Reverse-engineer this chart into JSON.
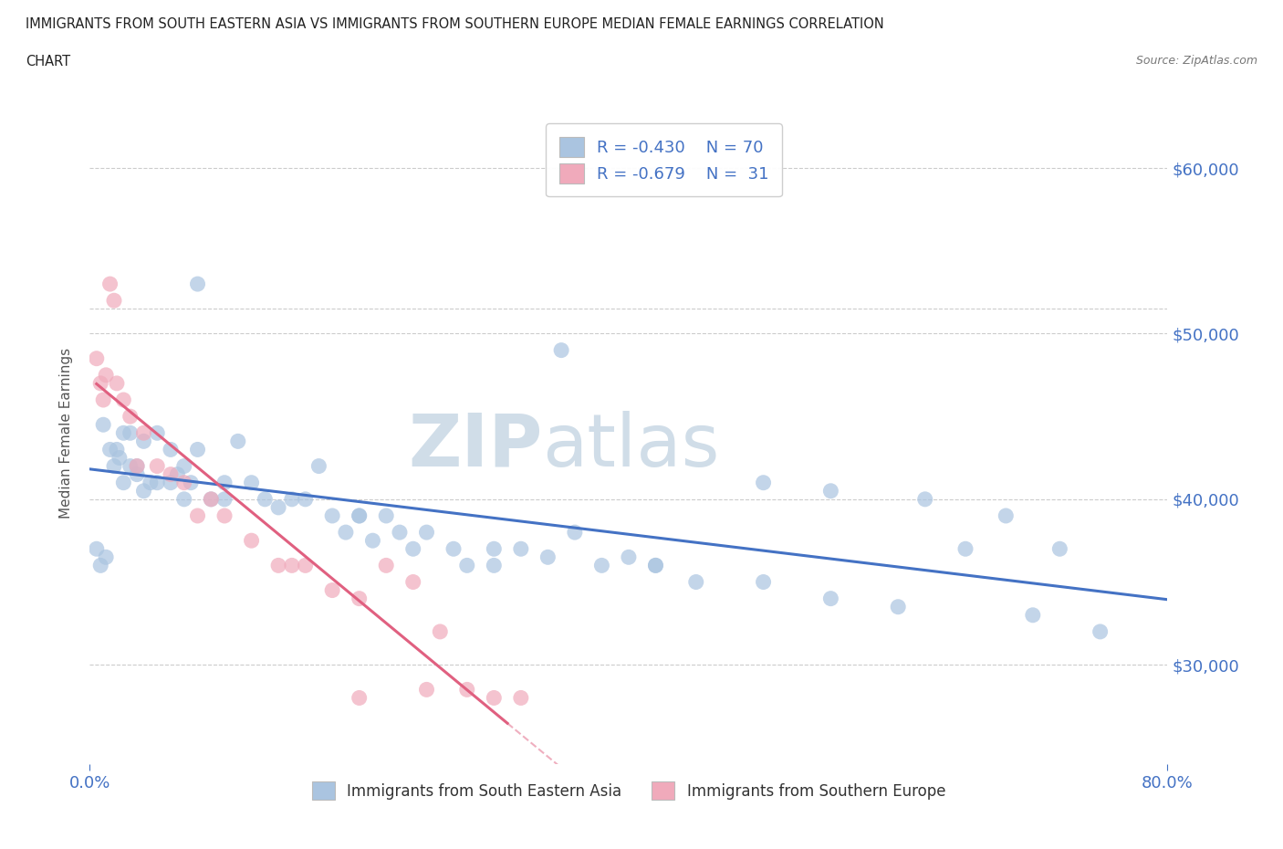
{
  "title_line1": "IMMIGRANTS FROM SOUTH EASTERN ASIA VS IMMIGRANTS FROM SOUTHERN EUROPE MEDIAN FEMALE EARNINGS CORRELATION",
  "title_line2": "CHART",
  "source": "Source: ZipAtlas.com",
  "ylabel": "Median Female Earnings",
  "xlim": [
    0,
    0.8
  ],
  "ylim": [
    24000,
    64000
  ],
  "xtick_vals": [
    0.0,
    0.8
  ],
  "xtick_labels": [
    "0.0%",
    "80.0%"
  ],
  "ytick_values": [
    30000,
    40000,
    50000,
    60000
  ],
  "ytick_labels": [
    "$30,000",
    "$40,000",
    "$50,000",
    "$60,000"
  ],
  "color_blue": "#aac4e0",
  "color_pink": "#f0aabb",
  "line_blue": "#4472c4",
  "line_pink": "#e06080",
  "text_blue": "#4472c4",
  "watermark_color": "#d0dde8",
  "background": "#ffffff",
  "blue_x": [
    0.005,
    0.008,
    0.01,
    0.012,
    0.015,
    0.018,
    0.02,
    0.022,
    0.025,
    0.025,
    0.03,
    0.03,
    0.035,
    0.035,
    0.04,
    0.04,
    0.045,
    0.05,
    0.05,
    0.06,
    0.06,
    0.065,
    0.07,
    0.07,
    0.075,
    0.08,
    0.09,
    0.1,
    0.1,
    0.11,
    0.12,
    0.13,
    0.14,
    0.15,
    0.16,
    0.17,
    0.18,
    0.19,
    0.2,
    0.21,
    0.22,
    0.23,
    0.24,
    0.25,
    0.27,
    0.28,
    0.3,
    0.32,
    0.34,
    0.36,
    0.38,
    0.4,
    0.42,
    0.45,
    0.5,
    0.55,
    0.6,
    0.65,
    0.7,
    0.75,
    0.08,
    0.35,
    0.5,
    0.55,
    0.62,
    0.68,
    0.72,
    0.42,
    0.3,
    0.2
  ],
  "blue_y": [
    37000,
    36000,
    44500,
    36500,
    43000,
    42000,
    43000,
    42500,
    41000,
    44000,
    42000,
    44000,
    41500,
    42000,
    40500,
    43500,
    41000,
    44000,
    41000,
    41000,
    43000,
    41500,
    42000,
    40000,
    41000,
    43000,
    40000,
    41000,
    40000,
    43500,
    41000,
    40000,
    39500,
    40000,
    40000,
    42000,
    39000,
    38000,
    39000,
    37500,
    39000,
    38000,
    37000,
    38000,
    37000,
    36000,
    37000,
    37000,
    36500,
    38000,
    36000,
    36500,
    36000,
    35000,
    35000,
    34000,
    33500,
    37000,
    33000,
    32000,
    53000,
    49000,
    41000,
    40500,
    40000,
    39000,
    37000,
    36000,
    36000,
    39000
  ],
  "pink_x": [
    0.005,
    0.008,
    0.01,
    0.012,
    0.015,
    0.018,
    0.02,
    0.025,
    0.03,
    0.035,
    0.04,
    0.05,
    0.06,
    0.07,
    0.08,
    0.09,
    0.1,
    0.12,
    0.14,
    0.16,
    0.18,
    0.2,
    0.22,
    0.24,
    0.26,
    0.28,
    0.3,
    0.32,
    0.15,
    0.25,
    0.2
  ],
  "pink_y": [
    48500,
    47000,
    46000,
    47500,
    53000,
    52000,
    47000,
    46000,
    45000,
    42000,
    44000,
    42000,
    41500,
    41000,
    39000,
    40000,
    39000,
    37500,
    36000,
    36000,
    34500,
    34000,
    36000,
    35000,
    32000,
    28500,
    28000,
    28000,
    36000,
    28500,
    28000
  ],
  "pink_line_solid_end": 0.31,
  "pink_line_dashed_end": 0.55,
  "dashed_gridline_y": 51500
}
